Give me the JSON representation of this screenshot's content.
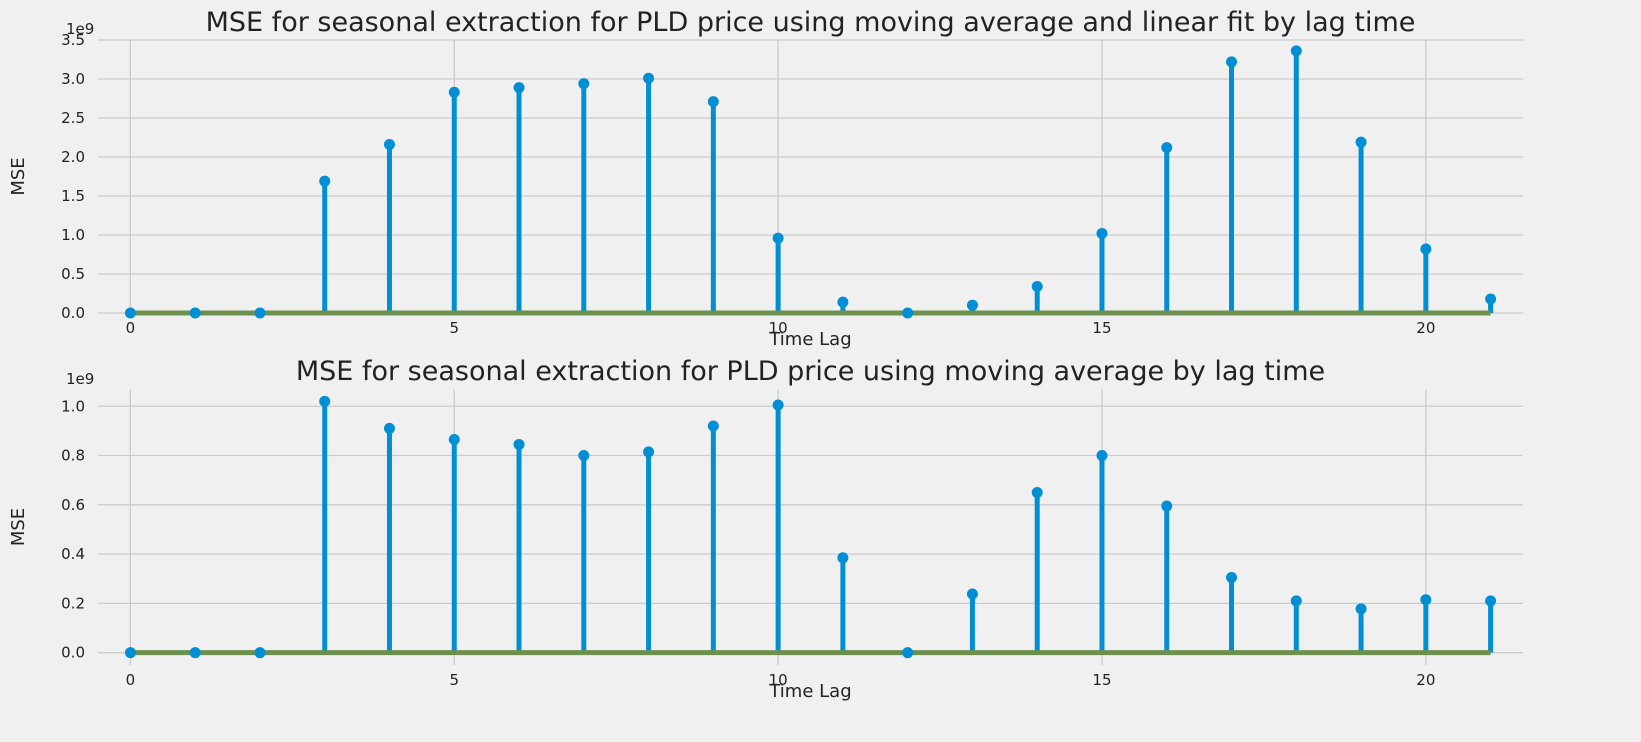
{
  "chart_data": [
    {
      "type": "stem",
      "title": "MSE for seasonal extraction for PLD price using moving average and linear fit by lag time",
      "xlabel": "Time Lag",
      "ylabel": "MSE",
      "y_exponent_label": "1e9",
      "xlim": [
        -0.5,
        21.5
      ],
      "ylim": [
        0,
        3.5
      ],
      "x_ticks": [
        0,
        5,
        10,
        15,
        20
      ],
      "y_ticks": [
        0.0,
        0.5,
        1.0,
        1.5,
        2.0,
        2.5,
        3.0,
        3.5
      ],
      "y_tick_labels": [
        "0.0",
        "0.5",
        "1.0",
        "1.5",
        "2.0",
        "2.5",
        "3.0",
        "3.5"
      ],
      "grid": true,
      "x": [
        0,
        1,
        2,
        3,
        4,
        5,
        6,
        7,
        8,
        9,
        10,
        11,
        12,
        13,
        14,
        15,
        16,
        17,
        18,
        19,
        20,
        21
      ],
      "values": [
        0.0,
        0.0,
        0.0,
        1.69,
        2.16,
        2.83,
        2.89,
        2.94,
        3.01,
        2.71,
        0.96,
        0.14,
        0.0,
        0.1,
        0.34,
        1.02,
        2.12,
        3.22,
        3.36,
        2.19,
        0.82,
        0.18
      ],
      "colors": {
        "stem": "#008fd5",
        "baseline": "#6d904f"
      }
    },
    {
      "type": "stem",
      "title": "MSE for seasonal extraction for PLD price using moving average by lag time",
      "xlabel": "Time Lag",
      "ylabel": "MSE",
      "y_exponent_label": "1e9",
      "xlim": [
        -0.5,
        21.5
      ],
      "ylim": [
        -0.05,
        1.07
      ],
      "x_ticks": [
        0,
        5,
        10,
        15,
        20
      ],
      "y_ticks": [
        0.0,
        0.2,
        0.4,
        0.6,
        0.8,
        1.0
      ],
      "y_tick_labels": [
        "0.0",
        "0.2",
        "0.4",
        "0.6",
        "0.8",
        "1.0"
      ],
      "grid": true,
      "x": [
        0,
        1,
        2,
        3,
        4,
        5,
        6,
        7,
        8,
        9,
        10,
        11,
        12,
        13,
        14,
        15,
        16,
        17,
        18,
        19,
        20,
        21
      ],
      "values": [
        0.0,
        0.0,
        0.0,
        1.02,
        0.91,
        0.865,
        0.845,
        0.8,
        0.815,
        0.92,
        1.005,
        0.385,
        0.0,
        0.238,
        0.65,
        0.8,
        0.595,
        0.305,
        0.21,
        0.178,
        0.215,
        0.21
      ],
      "colors": {
        "stem": "#008fd5",
        "baseline": "#6d904f"
      }
    }
  ]
}
